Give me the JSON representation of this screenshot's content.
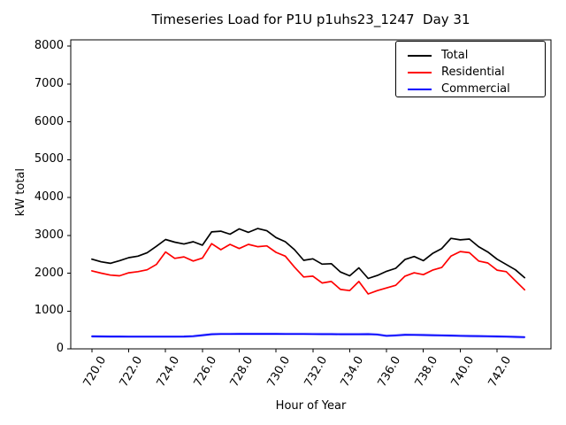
{
  "chart_data": {
    "type": "line",
    "title": "Timeseries Load for P1U p1uhs23_1247  Day 31",
    "xlabel": "Hour of Year",
    "ylabel": "kW total",
    "xlim": [
      718.85,
      744.93
    ],
    "ylim": [
      0,
      8165
    ],
    "grid": false,
    "xticks": [
      720,
      722,
      724,
      726,
      728,
      730,
      732,
      734,
      736,
      738,
      740,
      742
    ],
    "xtick_labels": [
      "720.0",
      "722.0",
      "724.0",
      "726.0",
      "728.0",
      "730.0",
      "732.0",
      "734.0",
      "736.0",
      "738.0",
      "740.0",
      "742.0"
    ],
    "yticks": [
      0,
      1000,
      2000,
      3000,
      4000,
      5000,
      6000,
      7000,
      8000
    ],
    "ytick_labels": [
      "0",
      "1000",
      "2000",
      "3000",
      "4000",
      "5000",
      "6000",
      "7000",
      "8000"
    ],
    "legend": {
      "position": "top-right",
      "border_color": "#000000",
      "background": "#ffffff"
    },
    "x": [
      720.0,
      720.5,
      721.0,
      721.5,
      722.0,
      722.5,
      723.0,
      723.5,
      724.0,
      724.5,
      725.0,
      725.5,
      726.0,
      726.5,
      727.0,
      727.5,
      728.0,
      728.5,
      729.0,
      729.5,
      730.0,
      730.5,
      731.0,
      731.5,
      732.0,
      732.5,
      733.0,
      733.5,
      734.0,
      734.5,
      735.0,
      735.5,
      736.0,
      736.5,
      737.0,
      737.5,
      738.0,
      738.5,
      739.0,
      739.5,
      740.0,
      740.5,
      741.0,
      741.5,
      742.0,
      742.5,
      743.0,
      743.5
    ],
    "series": [
      {
        "name": "Total",
        "color": "#000000",
        "values": [
          2370,
          2300,
          2260,
          2330,
          2410,
          2450,
          2540,
          2710,
          2890,
          2820,
          2770,
          2830,
          2740,
          3090,
          3110,
          3030,
          3170,
          3080,
          3180,
          3120,
          2940,
          2830,
          2620,
          2340,
          2380,
          2240,
          2250,
          2030,
          1930,
          2140,
          1860,
          1940,
          2050,
          2130,
          2360,
          2440,
          2330,
          2520,
          2650,
          2920,
          2880,
          2900,
          2700,
          2560,
          2370,
          2230,
          2090,
          1880
        ]
      },
      {
        "name": "Residential",
        "color": "#ff0000",
        "values": [
          2060,
          2000,
          1950,
          1930,
          2010,
          2040,
          2090,
          2230,
          2560,
          2390,
          2430,
          2320,
          2400,
          2780,
          2620,
          2760,
          2650,
          2760,
          2700,
          2720,
          2550,
          2450,
          2160,
          1900,
          1920,
          1740,
          1780,
          1570,
          1540,
          1780,
          1450,
          1540,
          1610,
          1680,
          1920,
          2010,
          1960,
          2080,
          2150,
          2450,
          2570,
          2540,
          2320,
          2270,
          2080,
          2040,
          1800,
          1560
        ]
      },
      {
        "name": "Commercial",
        "color": "#0000ff",
        "values": [
          330,
          328,
          326,
          325,
          324,
          323,
          322,
          322,
          323,
          324,
          326,
          335,
          360,
          385,
          392,
          394,
          395,
          396,
          396,
          396,
          395,
          394,
          393,
          392,
          390,
          389,
          388,
          387,
          386,
          385,
          388,
          380,
          345,
          355,
          372,
          370,
          366,
          360,
          355,
          350,
          345,
          340,
          336,
          332,
          328,
          322,
          316,
          308
        ]
      }
    ]
  }
}
